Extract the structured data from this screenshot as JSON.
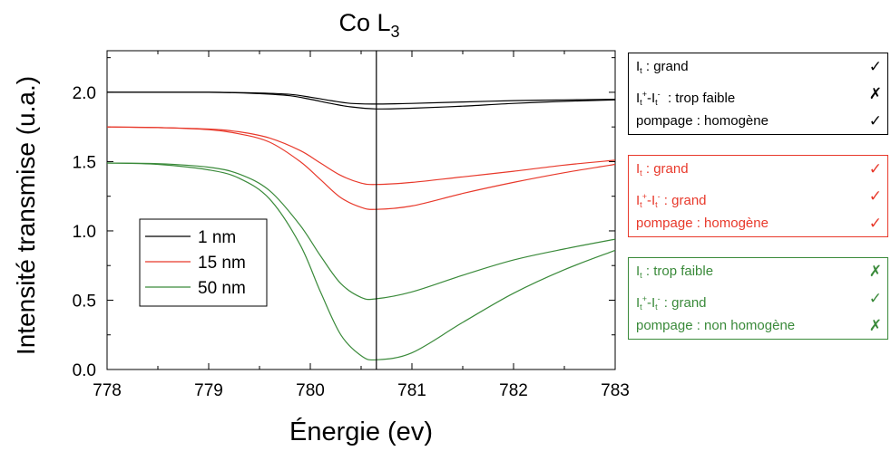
{
  "chart_data": {
    "type": "line",
    "title": "Co L",
    "title_subscript": "3",
    "xlabel": "Énergie (ev)",
    "ylabel": "Intensité transmise (u.a.)",
    "xlim": [
      778,
      783
    ],
    "ylim": [
      0,
      2.3
    ],
    "x_ticks": [
      "778",
      "779",
      "780",
      "781",
      "782",
      "783"
    ],
    "y_ticks": [
      "0.0",
      "0.5",
      "1.0",
      "1.5",
      "2.0"
    ],
    "vertical_marker_x": 780.65,
    "grid": false,
    "legend_position": "left-center",
    "series": [
      {
        "name": "1 nm",
        "color": "#000000",
        "lines": [
          {
            "x": [
              778,
              779,
              779.5,
              779.8,
              780,
              780.2,
              780.4,
              780.65,
              781,
              781.5,
              782,
              782.5,
              783
            ],
            "y": [
              2.0,
              2.0,
              1.995,
              1.985,
              1.965,
              1.94,
              1.92,
              1.915,
              1.92,
              1.93,
              1.94,
              1.945,
              1.95
            ]
          },
          {
            "x": [
              778,
              779,
              779.5,
              779.8,
              780,
              780.2,
              780.4,
              780.65,
              781,
              781.5,
              782,
              782.5,
              783
            ],
            "y": [
              2.0,
              2.0,
              1.99,
              1.975,
              1.95,
              1.92,
              1.895,
              1.88,
              1.885,
              1.9,
              1.92,
              1.935,
              1.945
            ]
          }
        ]
      },
      {
        "name": "15 nm",
        "color": "#e8392b",
        "lines": [
          {
            "x": [
              778,
              778.5,
              779,
              779.3,
              779.6,
              779.9,
              780.1,
              780.3,
              780.5,
              780.65,
              781,
              781.5,
              782,
              782.5,
              783
            ],
            "y": [
              1.75,
              1.745,
              1.735,
              1.715,
              1.67,
              1.58,
              1.49,
              1.4,
              1.345,
              1.335,
              1.35,
              1.39,
              1.43,
              1.475,
              1.51
            ]
          },
          {
            "x": [
              778,
              778.5,
              779,
              779.3,
              779.6,
              779.9,
              780.1,
              780.3,
              780.5,
              780.65,
              781,
              781.5,
              782,
              782.5,
              783
            ],
            "y": [
              1.75,
              1.745,
              1.73,
              1.7,
              1.64,
              1.5,
              1.37,
              1.24,
              1.17,
              1.155,
              1.18,
              1.27,
              1.35,
              1.42,
              1.48
            ]
          }
        ]
      },
      {
        "name": "50 nm",
        "color": "#3a8a3a",
        "lines": [
          {
            "x": [
              778,
              778.5,
              779,
              779.3,
              779.6,
              779.9,
              780.1,
              780.3,
              780.5,
              780.65,
              781,
              781.5,
              782,
              782.5,
              783
            ],
            "y": [
              1.49,
              1.485,
              1.46,
              1.41,
              1.29,
              1.04,
              0.82,
              0.62,
              0.52,
              0.51,
              0.56,
              0.68,
              0.79,
              0.87,
              0.94
            ]
          },
          {
            "x": [
              778,
              778.5,
              779,
              779.3,
              779.6,
              779.9,
              780.1,
              780.3,
              780.5,
              780.65,
              781,
              781.5,
              782,
              782.5,
              783
            ],
            "y": [
              1.49,
              1.48,
              1.44,
              1.38,
              1.23,
              0.9,
              0.56,
              0.25,
              0.1,
              0.07,
              0.12,
              0.34,
              0.55,
              0.72,
              0.86
            ]
          }
        ]
      }
    ]
  },
  "notes": [
    {
      "color": "#000000",
      "rows": [
        {
          "label_html": "I<sub>t</sub> : grand",
          "mark": "✓"
        },
        {
          "label_html": "I<sub>t</sub><sup>+</sup>-I<sub>t</sub><sup>-</sup> &nbsp;: trop faible",
          "mark": "✗"
        },
        {
          "label_html": "pompage : homogène",
          "mark": "✓"
        }
      ]
    },
    {
      "color": "#e8392b",
      "rows": [
        {
          "label_html": "I<sub>t</sub> : grand",
          "mark": "✓"
        },
        {
          "label_html": "I<sub>t</sub><sup>+</sup>-I<sub>t</sub><sup>-</sup> : grand",
          "mark": "✓"
        },
        {
          "label_html": "pompage : homogène",
          "mark": "✓"
        }
      ]
    },
    {
      "color": "#3a8a3a",
      "rows": [
        {
          "label_html": "I<sub>t</sub> : trop faible",
          "mark": "✗"
        },
        {
          "label_html": "I<sub>t</sub><sup>+</sup>-I<sub>t</sub><sup>-</sup> : grand",
          "mark": "✓"
        },
        {
          "label_html": "pompage : non homogène",
          "mark": "✗"
        }
      ]
    }
  ]
}
